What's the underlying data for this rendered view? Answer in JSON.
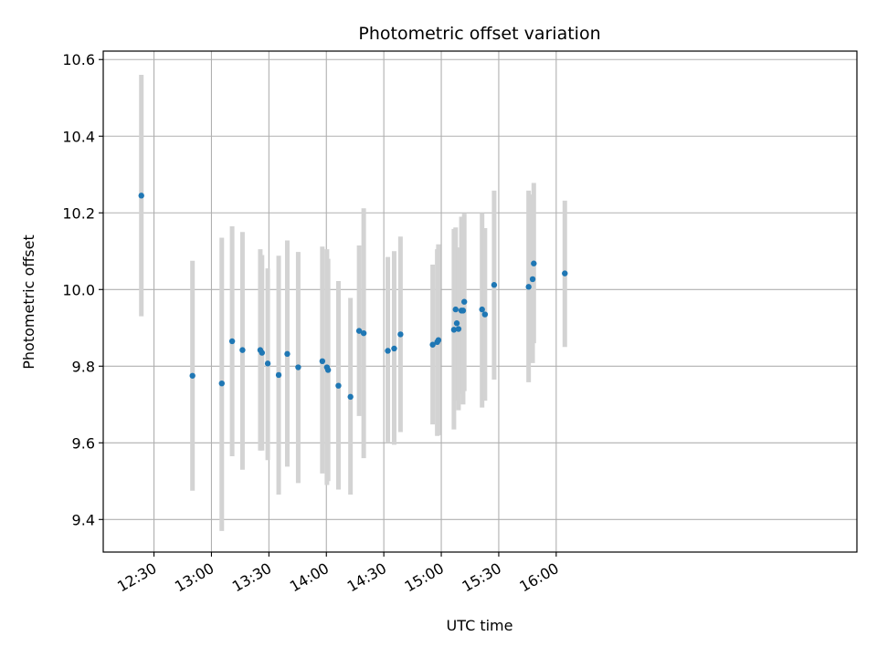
{
  "chart_data": {
    "type": "scatter",
    "title": "Photometric offset variation",
    "xlabel": "UTC time",
    "ylabel": "Photometric offset",
    "x_unit": "minutes since 12:00 UTC",
    "xlim": [
      3.5,
      397
    ],
    "ylim": [
      9.315,
      10.622
    ],
    "grid": true,
    "legend": "none",
    "x_ticks": [
      {
        "value": 30,
        "label": "12:30"
      },
      {
        "value": 60,
        "label": "13:00"
      },
      {
        "value": 90,
        "label": "13:30"
      },
      {
        "value": 120,
        "label": "14:00"
      },
      {
        "value": 150,
        "label": "14:30"
      },
      {
        "value": 180,
        "label": "15:00"
      },
      {
        "value": 210,
        "label": "15:30"
      },
      {
        "value": 240,
        "label": "16:00"
      }
    ],
    "y_ticks": [
      {
        "value": 9.4,
        "label": "9.4"
      },
      {
        "value": 9.6,
        "label": "9.6"
      },
      {
        "value": 9.8,
        "label": "9.8"
      },
      {
        "value": 10.0,
        "label": "10.0"
      },
      {
        "value": 10.2,
        "label": "10.2"
      },
      {
        "value": 10.4,
        "label": "10.4"
      },
      {
        "value": 10.6,
        "label": "10.6"
      }
    ],
    "points": [
      {
        "x": 23.4,
        "y": 10.245,
        "lo": 9.93,
        "hi": 10.56
      },
      {
        "x": 50.1,
        "y": 9.775,
        "lo": 9.475,
        "hi": 10.075
      },
      {
        "x": 65.4,
        "y": 9.755,
        "lo": 9.37,
        "hi": 10.135
      },
      {
        "x": 70.8,
        "y": 9.865,
        "lo": 9.565,
        "hi": 10.165
      },
      {
        "x": 76.2,
        "y": 9.842,
        "lo": 9.53,
        "hi": 10.15
      },
      {
        "x": 85.5,
        "y": 9.842,
        "lo": 9.58,
        "hi": 10.105
      },
      {
        "x": 86.4,
        "y": 9.835,
        "lo": 9.58,
        "hi": 10.09
      },
      {
        "x": 89.4,
        "y": 9.807,
        "lo": 9.555,
        "hi": 10.055
      },
      {
        "x": 95.1,
        "y": 9.777,
        "lo": 9.465,
        "hi": 10.088
      },
      {
        "x": 99.6,
        "y": 9.832,
        "lo": 9.538,
        "hi": 10.128
      },
      {
        "x": 105.3,
        "y": 9.797,
        "lo": 9.495,
        "hi": 10.098
      },
      {
        "x": 117.9,
        "y": 9.813,
        "lo": 9.52,
        "hi": 10.112
      },
      {
        "x": 120.3,
        "y": 9.797,
        "lo": 9.49,
        "hi": 10.105
      },
      {
        "x": 120.9,
        "y": 9.79,
        "lo": 9.5,
        "hi": 10.08
      },
      {
        "x": 126.3,
        "y": 9.749,
        "lo": 9.478,
        "hi": 10.022
      },
      {
        "x": 132.6,
        "y": 9.72,
        "lo": 9.465,
        "hi": 9.978
      },
      {
        "x": 137.1,
        "y": 9.892,
        "lo": 9.67,
        "hi": 10.115
      },
      {
        "x": 139.5,
        "y": 9.886,
        "lo": 9.56,
        "hi": 10.212
      },
      {
        "x": 152.1,
        "y": 9.84,
        "lo": 9.6,
        "hi": 10.085
      },
      {
        "x": 155.4,
        "y": 9.846,
        "lo": 9.595,
        "hi": 10.1
      },
      {
        "x": 158.7,
        "y": 9.883,
        "lo": 9.628,
        "hi": 10.138
      },
      {
        "x": 175.5,
        "y": 9.856,
        "lo": 9.648,
        "hi": 10.065
      },
      {
        "x": 177.9,
        "y": 9.863,
        "lo": 9.618,
        "hi": 10.105
      },
      {
        "x": 178.5,
        "y": 9.868,
        "lo": 9.62,
        "hi": 10.118
      },
      {
        "x": 186.6,
        "y": 9.895,
        "lo": 9.635,
        "hi": 10.158
      },
      {
        "x": 187.5,
        "y": 9.948,
        "lo": 9.71,
        "hi": 10.162
      },
      {
        "x": 188.1,
        "y": 9.912,
        "lo": 9.718,
        "hi": 10.108
      },
      {
        "x": 189.0,
        "y": 9.897,
        "lo": 9.685,
        "hi": 10.11
      },
      {
        "x": 190.5,
        "y": 9.945,
        "lo": 9.728,
        "hi": 10.19
      },
      {
        "x": 191.4,
        "y": 9.945,
        "lo": 9.7,
        "hi": 10.19
      },
      {
        "x": 192.0,
        "y": 9.968,
        "lo": 9.735,
        "hi": 10.198
      },
      {
        "x": 201.3,
        "y": 9.948,
        "lo": 9.692,
        "hi": 10.2
      },
      {
        "x": 202.8,
        "y": 9.935,
        "lo": 9.71,
        "hi": 10.16
      },
      {
        "x": 207.6,
        "y": 10.012,
        "lo": 9.765,
        "hi": 10.258
      },
      {
        "x": 225.6,
        "y": 10.007,
        "lo": 9.758,
        "hi": 10.258
      },
      {
        "x": 227.7,
        "y": 10.027,
        "lo": 9.808,
        "hi": 10.248
      },
      {
        "x": 228.3,
        "y": 10.068,
        "lo": 9.86,
        "hi": 10.278
      },
      {
        "x": 244.5,
        "y": 10.042,
        "lo": 9.85,
        "hi": 10.232
      }
    ],
    "colors": {
      "marker": "#1f77b4",
      "errorbar": "#d3d3d3",
      "grid": "#b0b0b0",
      "axes": "#000000"
    }
  }
}
